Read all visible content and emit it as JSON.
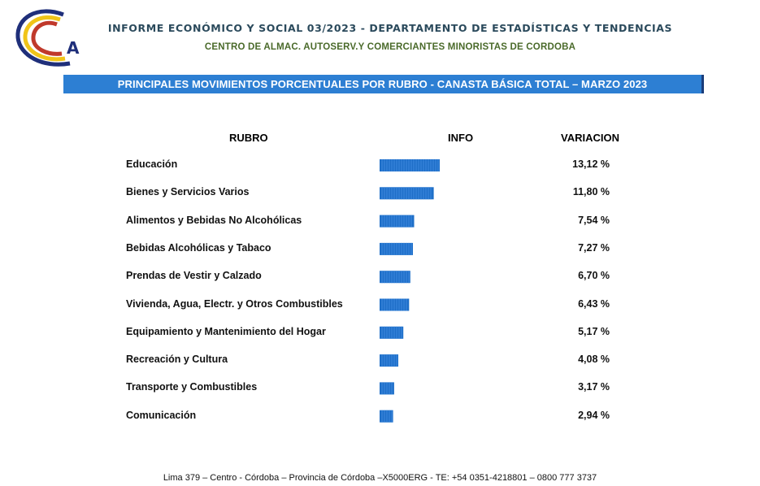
{
  "header": {
    "title": "INFORME ECONÓMICO Y SOCIAL 03/2023 - DEPARTAMENTO DE ESTADÍSTICAS Y TENDENCIAS",
    "org": "CENTRO DE ALMAC. AUTOSERV.Y COMERCIANTES MINORISTAS DE CORDOBA",
    "logo_letter": "A"
  },
  "banner": "PRINCIPALES MOVIMIENTOS PORCENTUALES POR RUBRO - CANASTA BÁSICA TOTAL – MARZO 2023",
  "colors": {
    "bar": "#1f6fc8",
    "banner": "#2d7fd3"
  },
  "chart_data": {
    "type": "bar",
    "orientation": "horizontal",
    "columns": [
      "RUBRO",
      "INFO",
      "VARIACION"
    ],
    "categories": [
      "Educación",
      "Bienes y Servicios Varios",
      "Alimentos y Bebidas No Alcohólicas",
      "Bebidas Alcohólicas y Tabaco",
      "Prendas de Vestir y Calzado",
      "Vivienda, Agua, Electr. y Otros Combustibles",
      "Equipamiento y Mantenimiento del Hogar",
      "Recreación y Cultura",
      "Transporte y Combustibles",
      "Comunicación"
    ],
    "values": [
      13.12,
      11.8,
      7.54,
      7.27,
      6.7,
      6.43,
      5.17,
      4.08,
      3.17,
      2.94
    ],
    "value_labels": [
      "13,12 %",
      "11,80 %",
      "7,54 %",
      "7,27 %",
      "6,70 %",
      "6,43 %",
      "5,17 %",
      "4,08 %",
      "3,17 %",
      "2,94 %"
    ],
    "xlim": [
      0,
      13.12
    ],
    "grid": false,
    "legend": "none"
  },
  "footer": "Lima 379 – Centro - Córdoba – Provincia de Córdoba –X5000ERG - TE: +54 0351-4218801 – 0800 777 3737"
}
